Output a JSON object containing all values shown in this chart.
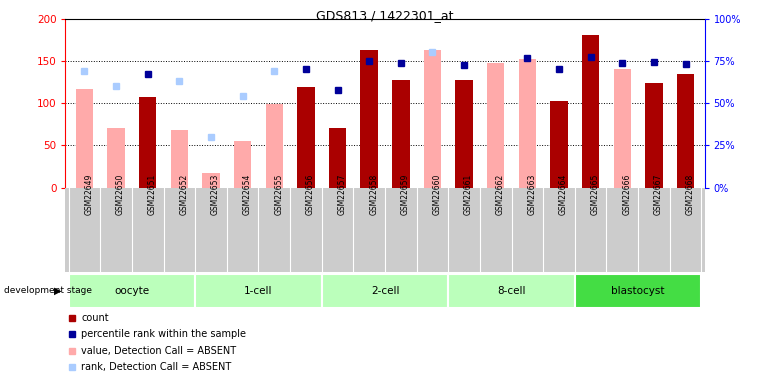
{
  "title": "GDS813 / 1422301_at",
  "samples": [
    "GSM22649",
    "GSM22650",
    "GSM22651",
    "GSM22652",
    "GSM22653",
    "GSM22654",
    "GSM22655",
    "GSM22656",
    "GSM22657",
    "GSM22658",
    "GSM22659",
    "GSM22660",
    "GSM22661",
    "GSM22662",
    "GSM22663",
    "GSM22664",
    "GSM22665",
    "GSM22666",
    "GSM22667",
    "GSM22668"
  ],
  "count_values": [
    null,
    null,
    107,
    null,
    null,
    null,
    null,
    119,
    70,
    163,
    128,
    null,
    128,
    null,
    null,
    102,
    181,
    null,
    124,
    135
  ],
  "count_absent": [
    117,
    71,
    null,
    68,
    17,
    55,
    99,
    null,
    null,
    null,
    null,
    163,
    null,
    147,
    152,
    null,
    null,
    140,
    null,
    null
  ],
  "percentile_rank": [
    null,
    null,
    135,
    null,
    null,
    null,
    null,
    140,
    115,
    150,
    147,
    null,
    145,
    null,
    153,
    141,
    155,
    148,
    149,
    146
  ],
  "percentile_rank_absent": [
    138,
    120,
    null,
    126,
    60,
    108,
    138,
    null,
    null,
    null,
    null,
    161,
    null,
    null,
    null,
    null,
    null,
    null,
    null,
    null
  ],
  "stage_groups": [
    {
      "name": "oocyte",
      "cols": [
        0,
        1,
        2,
        3
      ]
    },
    {
      "name": "1-cell",
      "cols": [
        4,
        5,
        6,
        7
      ]
    },
    {
      "name": "2-cell",
      "cols": [
        8,
        9,
        10,
        11
      ]
    },
    {
      "name": "8-cell",
      "cols": [
        12,
        13,
        14,
        15
      ]
    },
    {
      "name": "blastocyst",
      "cols": [
        16,
        17,
        18,
        19
      ]
    }
  ],
  "stage_colors": [
    "#BBFFBB",
    "#BBFFBB",
    "#BBFFBB",
    "#BBFFBB",
    "#44DD44"
  ],
  "ylim_left": [
    0,
    200
  ],
  "yticks_left": [
    0,
    50,
    100,
    150,
    200
  ],
  "yticks_right": [
    0,
    25,
    50,
    75,
    100
  ],
  "bar_width": 0.55,
  "color_count": "#AA0000",
  "color_count_absent": "#FFAAAA",
  "color_rank": "#000099",
  "color_rank_absent": "#AACCFF",
  "background_color": "#ffffff"
}
